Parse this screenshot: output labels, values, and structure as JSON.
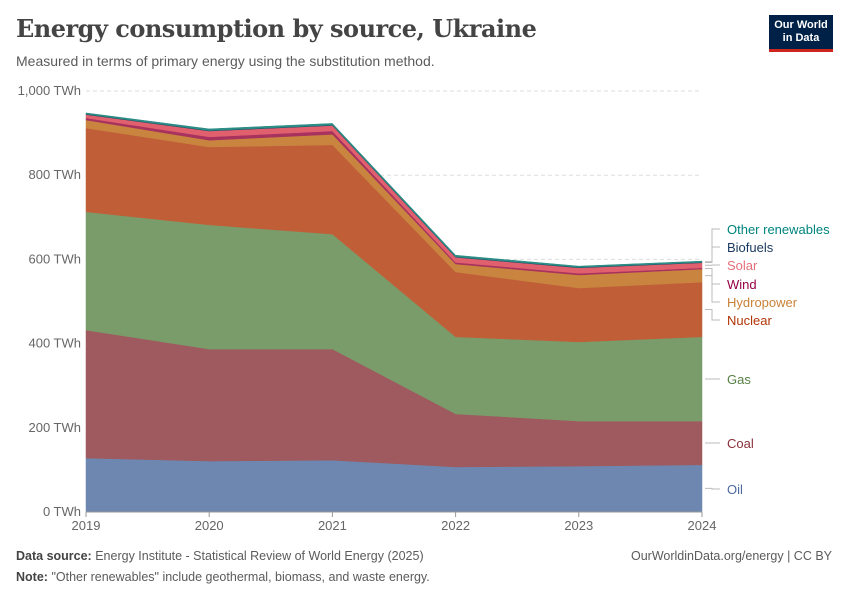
{
  "header": {
    "title": "Energy consumption by source, Ukraine",
    "subtitle": "Measured in terms of primary energy using the substitution method.",
    "logo_text": "Our World in Data"
  },
  "footer": {
    "source_label": "Data source:",
    "source": "Energy Institute - Statistical Review of World Energy (2025)",
    "note_label": "Note:",
    "note": "\"Other renewables\" include geothermal, biomass, and waste energy.",
    "credit": "OurWorldinData.org/energy | CC BY"
  },
  "chart_data": {
    "type": "area",
    "stacked": true,
    "title": "Energy consumption by source, Ukraine",
    "ylabel": "",
    "xlabel": "",
    "unit": "TWh",
    "ylim": [
      0,
      1000
    ],
    "yticks": [
      "0 TWh",
      "200 TWh",
      "400 TWh",
      "600 TWh",
      "800 TWh",
      "1,000 TWh"
    ],
    "ytick_values": [
      0,
      200,
      400,
      600,
      800,
      1000
    ],
    "x": [
      "2019",
      "2020",
      "2021",
      "2022",
      "2023",
      "2024"
    ],
    "grid": "horizontal dashed",
    "legend": "right, inline labels",
    "series": [
      {
        "name": "Oil",
        "color": "#6d87b0",
        "label_color": "#4c6a9c",
        "values": [
          128,
          121,
          123,
          107,
          109,
          112
        ]
      },
      {
        "name": "Coal",
        "color": "#9e5a5e",
        "label_color": "#883039",
        "values": [
          304,
          266,
          264,
          126,
          107,
          104
        ]
      },
      {
        "name": "Gas",
        "color": "#7a9b6a",
        "label_color": "#578145",
        "values": [
          281,
          295,
          273,
          183,
          188,
          200
        ]
      },
      {
        "name": "Nuclear",
        "color": "#c05e38",
        "label_color": "#b13507",
        "values": [
          199,
          185,
          212,
          154,
          128,
          130
        ]
      },
      {
        "name": "Hydropower",
        "color": "#c9843f",
        "label_color": "#c98238",
        "values": [
          19,
          16,
          25,
          19,
          31,
          31
        ]
      },
      {
        "name": "Wind",
        "color": "#a8325e",
        "label_color": "#970046",
        "values": [
          5,
          8,
          8,
          4,
          4,
          3
        ]
      },
      {
        "name": "Solar",
        "color": "#e0606e",
        "label_color": "#e56e7a",
        "values": [
          8,
          14,
          13,
          12,
          13,
          12
        ]
      },
      {
        "name": "Biofuels",
        "color": "#1d3d63",
        "label_color": "#18375f",
        "values": [
          1,
          1,
          1,
          1,
          1,
          1
        ]
      },
      {
        "name": "Other renewables",
        "color": "#2a8c84",
        "label_color": "#00847e",
        "values": [
          3,
          4,
          4,
          4,
          3,
          3
        ]
      }
    ]
  }
}
